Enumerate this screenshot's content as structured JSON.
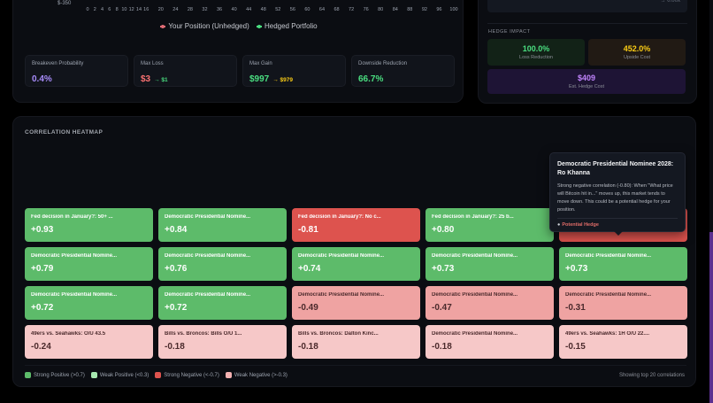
{
  "chart": {
    "y_tick_bottom": "$-350",
    "x_ticks": [
      "0",
      "2",
      "4",
      "6",
      "8",
      "10",
      "12",
      "14",
      "16",
      "20",
      "24",
      "28",
      "32",
      "36",
      "40",
      "44",
      "48",
      "52",
      "56",
      "60",
      "64",
      "68",
      "72",
      "76",
      "80",
      "84",
      "88",
      "92",
      "96",
      "100"
    ],
    "legend": [
      {
        "label": "Your Position (Unhedged)",
        "color": "#e06c75"
      },
      {
        "label": "Hedged Portfolio",
        "color": "#4ade80"
      }
    ]
  },
  "chart_data": {
    "type": "line",
    "title": "",
    "xlabel": "",
    "ylabel": "",
    "x_ticks": [
      0,
      2,
      4,
      6,
      8,
      10,
      12,
      14,
      16,
      20,
      24,
      28,
      32,
      36,
      40,
      44,
      48,
      52,
      56,
      60,
      64,
      68,
      72,
      76,
      80,
      84,
      88,
      92,
      96,
      100
    ],
    "y_ticks_visible": [
      "$-350"
    ],
    "xlim": [
      0,
      100
    ],
    "legend": [
      "Your Position (Unhedged)",
      "Hedged Portfolio"
    ],
    "series": [
      {
        "name": "Your Position (Unhedged)",
        "values": []
      },
      {
        "name": "Hedged Portfolio",
        "values": []
      }
    ]
  },
  "stats": [
    {
      "label": "Breakeven Probability",
      "value": "0.4%",
      "color": "#a78bfa",
      "sub": "",
      "sub_color": ""
    },
    {
      "label": "Max Loss",
      "value": "$3",
      "color": "#f87171",
      "sub": "→ $1",
      "sub_color": "#4ade80"
    },
    {
      "label": "Max Gain",
      "value": "$997",
      "color": "#4ade80",
      "sub": "→ $979",
      "sub_color": "#facc15"
    },
    {
      "label": "Downside Reduction",
      "value": "66.7%",
      "color": "#4ade80",
      "sub": "",
      "sub_color": ""
    }
  ],
  "right_panel": {
    "top_row_value": "→ 0.00x",
    "hedge_impact_title": "HEDGE IMPACT",
    "loss_reduction": {
      "value": "100.0%",
      "label": "Loss Reduction"
    },
    "upside_cost": {
      "value": "452.0%",
      "label": "Upside Cost"
    },
    "hedge_cost": {
      "value": "$409",
      "label": "Est. Hedge Cost"
    }
  },
  "heatmap": {
    "title": "CORRELATION HEATMAP",
    "cells": [
      {
        "name": "Fed decision in January?: 50+ ...",
        "value": "+0.93",
        "class": "c-strong-pos"
      },
      {
        "name": "Democratic Presidential Nomine...",
        "value": "+0.84",
        "class": "c-strong-pos"
      },
      {
        "name": "Fed decision in January?: No c...",
        "value": "-0.81",
        "class": "c-strong-neg"
      },
      {
        "name": "Fed decision in January?: 25 b...",
        "value": "+0.80",
        "class": "c-strong-pos"
      },
      {
        "name": "Democratic Presidential Nominee 2028: Ro Khanna",
        "value": "-0.80",
        "class": "c-strong-neg"
      },
      {
        "name": "Democratic Presidential Nomine...",
        "value": "+0.79",
        "class": "c-strong-pos"
      },
      {
        "name": "Democratic Presidential Nomine...",
        "value": "+0.76",
        "class": "c-strong-pos"
      },
      {
        "name": "Democratic Presidential Nomine...",
        "value": "+0.74",
        "class": "c-strong-pos"
      },
      {
        "name": "Democratic Presidential Nomine...",
        "value": "+0.73",
        "class": "c-strong-pos"
      },
      {
        "name": "Democratic Presidential Nomine...",
        "value": "+0.73",
        "class": "c-strong-pos"
      },
      {
        "name": "Democratic Presidential Nomine...",
        "value": "+0.72",
        "class": "c-strong-pos"
      },
      {
        "name": "Democratic Presidential Nomine...",
        "value": "+0.72",
        "class": "c-strong-pos"
      },
      {
        "name": "Democratic Presidential Nomine...",
        "value": "-0.49",
        "class": "c-weak-neg1"
      },
      {
        "name": "Democratic Presidential Nomine...",
        "value": "-0.47",
        "class": "c-weak-neg1"
      },
      {
        "name": "Democratic Presidential Nomine...",
        "value": "-0.31",
        "class": "c-weak-neg1"
      },
      {
        "name": "49ers vs. Seahawks: O/U 43.5",
        "value": "-0.24",
        "class": "c-weak-neg2"
      },
      {
        "name": "Bills vs. Broncos: Bills O/U 1...",
        "value": "-0.18",
        "class": "c-weak-neg2"
      },
      {
        "name": "Bills vs. Broncos: Dalton Kinc...",
        "value": "-0.18",
        "class": "c-weak-neg2"
      },
      {
        "name": "Democratic Presidential Nomine...",
        "value": "-0.18",
        "class": "c-weak-neg2"
      },
      {
        "name": "49ers vs. Seahawks: 1H O/U 22....",
        "value": "-0.15",
        "class": "c-weak-neg2"
      }
    ],
    "legend": [
      {
        "label": "Strong Positive (>0.7)",
        "color": "#5dbb6a"
      },
      {
        "label": "Weak Positive (<0.3)",
        "color": "#a7e8b0"
      },
      {
        "label": "Strong Negative (<-0.7)",
        "color": "#dd534e"
      },
      {
        "label": "Weak Negative (>-0.3)",
        "color": "#f3b1b1"
      }
    ],
    "count_text": "Showing top 20 correlations"
  },
  "tooltip": {
    "title": "Democratic Presidential Nominee 2028: Ro Khanna",
    "body": "Strong negative correlation (-0.80): When \"What price will Bitcoin hit in...\" moves up, this market tends to move down. This could be a potential hedge for your position.",
    "tag": "Potential Hedge",
    "tag_icon": "pin-icon"
  }
}
